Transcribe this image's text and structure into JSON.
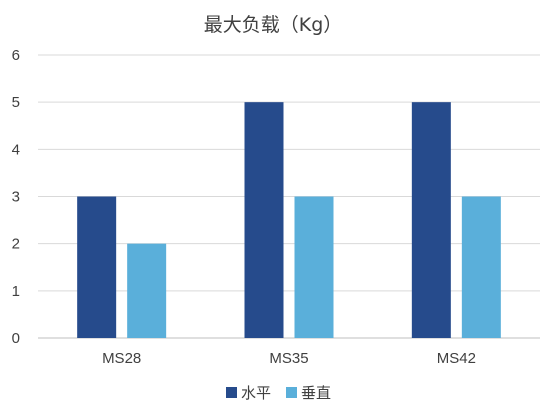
{
  "chart_data": {
    "type": "bar",
    "title": "最大负载（Kg）",
    "categories": [
      "MS28",
      "MS35",
      "MS42"
    ],
    "series": [
      {
        "name": "水平",
        "values": [
          3,
          5,
          5
        ],
        "color": "#264b8c"
      },
      {
        "name": "垂直",
        "values": [
          2,
          3,
          3
        ],
        "color": "#5aafda"
      }
    ],
    "yticks": [
      "0",
      "1",
      "2",
      "3",
      "4",
      "5",
      "6"
    ],
    "ylim": [
      0,
      6
    ],
    "grid": true,
    "legend": "bottom-center",
    "xlabel": "",
    "ylabel": ""
  }
}
